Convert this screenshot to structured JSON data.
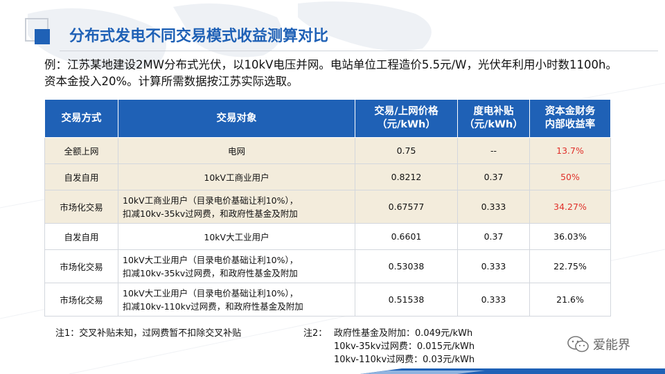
{
  "slide": {
    "title": "分布式发电不同交易模式收益测算对比",
    "intro": "例：江苏某地建设2MW分布式光伏，以10kV电压并网。电站单位工程造价5.5元/W，光伏年利用小时数1100h。资本金投入20%。计算所需数据按江苏实际选取。"
  },
  "table": {
    "headers": {
      "mode": "交易方式",
      "object": "交易对象",
      "price_line1": "交易/上网价格",
      "price_line2": "（元/kWh）",
      "subsidy_line1": "度电补贴",
      "subsidy_line2": "（元/kWh）",
      "irr_line1": "资本金财务",
      "irr_line2": "内部收益率"
    },
    "rows": [
      {
        "mode": "全额上网",
        "object_line1": "电网",
        "object_line2": "",
        "price": "0.75",
        "subsidy": "--",
        "irr": "13.7%"
      },
      {
        "mode": "自发自用",
        "object_line1": "10kV工商业用户",
        "object_line2": "",
        "price": "0.8212",
        "subsidy": "0.37",
        "irr": "50%"
      },
      {
        "mode": "市场化交易",
        "object_line1": "10kV工商业用户（目录电价基础让利10%），",
        "object_line2": "扣减10kv-35kv过网费，和政府性基金及附加",
        "price": "0.67577",
        "subsidy": "0.333",
        "irr": "34.27%"
      },
      {
        "mode": "自发自用",
        "object_line1": "10kV大工业用户",
        "object_line2": "",
        "price": "0.6601",
        "subsidy": "0.37",
        "irr": "36.03%"
      },
      {
        "mode": "市场化交易",
        "object_line1": "10kV大工业用户（目录电价基础让利10%），",
        "object_line2": "扣减10kv-35kv过网费，和政府性基金及附加",
        "price": "0.53038",
        "subsidy": "0.333",
        "irr": "22.75%"
      },
      {
        "mode": "市场化交易",
        "object_line1": "10kV大工业用户（目录电价基础让利10%），",
        "object_line2": "扣减10kv-110kv过网费，和政府性基金及附加",
        "price": "0.51538",
        "subsidy": "0.333",
        "irr": "21.6%"
      }
    ]
  },
  "notes": {
    "note1": "注1：交叉补贴未知，过网费暂不扣除交叉补贴",
    "note2_label": "注2：",
    "note2_lines": [
      "政府性基金及附加：0.049元/kWh",
      "10kv-35kv过网费：0.015元/kWh",
      "10kv-110kv过网费：0.03元/kWh"
    ]
  },
  "watermark": {
    "text": "爱能界",
    "icon": "wechat-icon"
  },
  "colors": {
    "brand_blue": "#1f61b6",
    "highlight_red": "#e0302a",
    "shaded_row": "#f3ecdc"
  }
}
